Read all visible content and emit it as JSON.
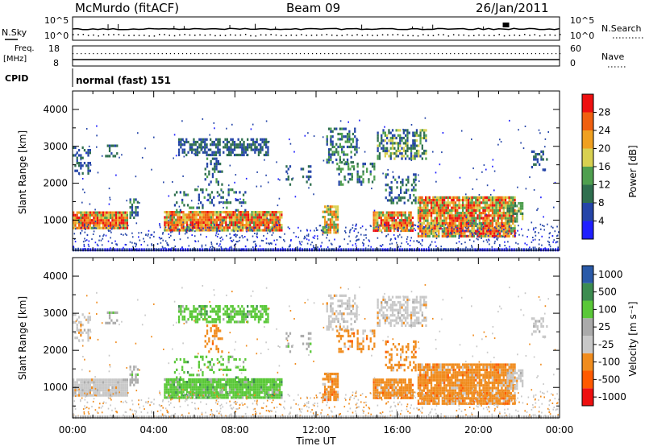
{
  "header": {
    "station": "McMurdo (fitACF)",
    "beam": "Beam 09",
    "date": "26/Jan/2011"
  },
  "summary": {
    "nsky_label": "N.Sky",
    "nsky_ticks": [
      "10^5",
      "10^0"
    ],
    "nsearch_label": "N.Search",
    "nsearch_ticks": [
      "10^5",
      "10^0"
    ],
    "freq_label_1": "Freq.",
    "freq_label_2": "[MHz]",
    "freq_ticks": [
      "18",
      "8"
    ],
    "nave_label": "Nave",
    "nave_ticks": [
      "60",
      "0"
    ],
    "cpid_label": "CPID",
    "cpid_value": "normal (fast) 151"
  },
  "colors": {
    "power": [
      "#1f1fff",
      "#2545a8",
      "#2f6f4f",
      "#4f9f4f",
      "#d8d050",
      "#f0a020",
      "#f06010",
      "#ee1010"
    ],
    "velocity": [
      "#ee1010",
      "#ff5a00",
      "#f08c1e",
      "#c8c8c8",
      "#aaaaaa",
      "#5ac838",
      "#3c8c50",
      "#2a5aa8"
    ]
  },
  "chart_data": [
    {
      "type": "heatmap",
      "panel": "power",
      "ylabel": "Slant Range [km]",
      "xlabel": "Time UT",
      "x_ticks": [
        "00:00",
        "04:00",
        "08:00",
        "12:00",
        "16:00",
        "20:00",
        "00:00"
      ],
      "y_ticks": [
        1000,
        2000,
        3000,
        4000
      ],
      "xlim_hours": [
        0,
        24
      ],
      "ylim_km": [
        180,
        4500
      ],
      "colorbar_label": "Power [dB]",
      "colorbar_ticks": [
        "28",
        "24",
        "20",
        "16",
        "12",
        "8",
        "4"
      ],
      "colorbar_range": [
        0,
        32
      ]
    },
    {
      "type": "heatmap",
      "panel": "velocity",
      "ylabel": "Slant Range [km]",
      "xlabel": "Time UT",
      "x_ticks": [
        "00:00",
        "04:00",
        "08:00",
        "12:00",
        "16:00",
        "20:00",
        "00:00"
      ],
      "y_ticks": [
        1000,
        2000,
        3000,
        4000
      ],
      "xlim_hours": [
        0,
        24
      ],
      "ylim_km": [
        180,
        4500
      ],
      "colorbar_label": "Velocity [m s⁻¹]",
      "colorbar_ticks": [
        "1000",
        "500",
        "100",
        "25",
        "-25",
        "-100",
        "-500",
        "-1000"
      ]
    }
  ]
}
